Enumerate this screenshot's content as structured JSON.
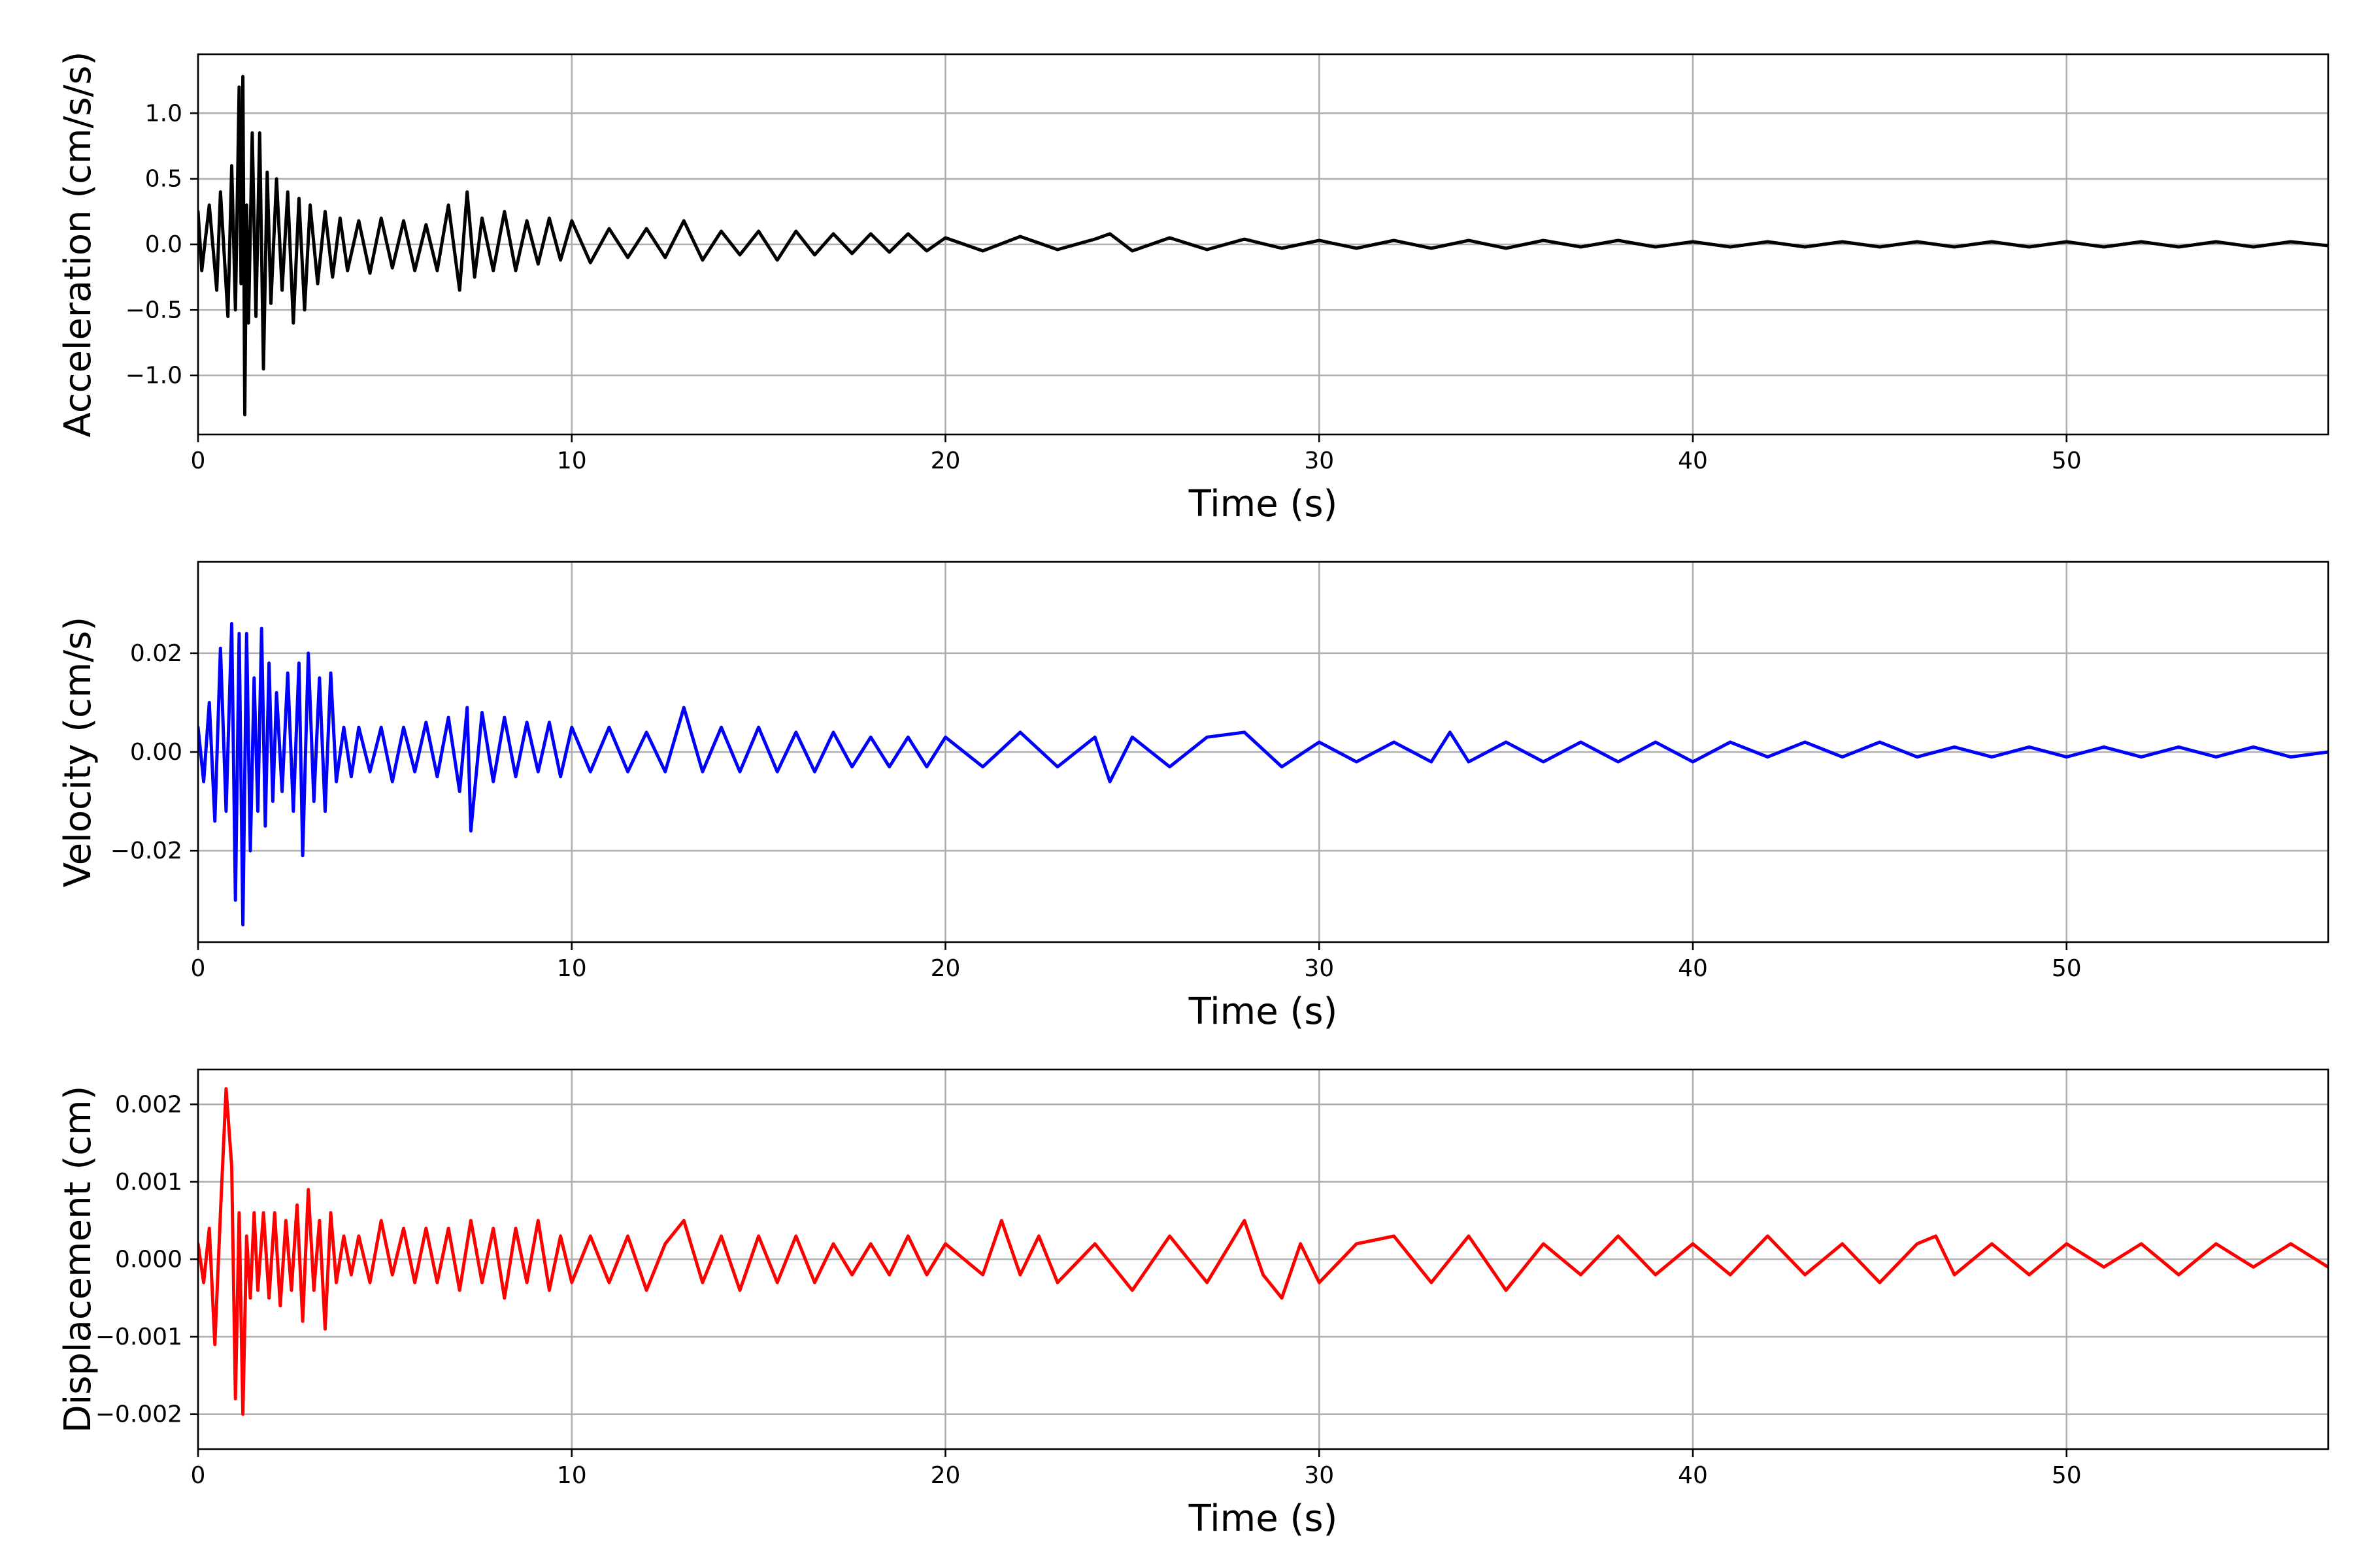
{
  "chart_data": [
    {
      "type": "line",
      "title": "",
      "xlabel": "Time (s)",
      "ylabel": "Acceleration (cm/s/s)",
      "xlim": [
        0,
        57
      ],
      "ylim": [
        -1.45,
        1.45
      ],
      "xticks": [
        0,
        10,
        20,
        30,
        40,
        50
      ],
      "xtick_labels": [
        "0",
        "10",
        "20",
        "30",
        "40",
        "50"
      ],
      "yticks": [
        -1.0,
        -0.5,
        0.0,
        0.5,
        1.0
      ],
      "ytick_labels": [
        "−1.0",
        "−0.5",
        "0.0",
        "0.5",
        "1.0"
      ],
      "grid": true,
      "legend": "none",
      "color": "#000000",
      "series": [
        {
          "x": [
            0,
            0.1,
            0.3,
            0.5,
            0.6,
            0.8,
            0.9,
            1.0,
            1.1,
            1.15,
            1.2,
            1.25,
            1.3,
            1.35,
            1.45,
            1.55,
            1.65,
            1.75,
            1.85,
            1.95,
            2.1,
            2.25,
            2.4,
            2.55,
            2.7,
            2.85,
            3.0,
            3.2,
            3.4,
            3.6,
            3.8,
            4.0,
            4.3,
            4.6,
            4.9,
            5.2,
            5.5,
            5.8,
            6.1,
            6.4,
            6.7,
            7.0,
            7.2,
            7.4,
            7.6,
            7.9,
            8.2,
            8.5,
            8.8,
            9.1,
            9.4,
            9.7,
            10.0,
            10.5,
            11.0,
            11.5,
            12.0,
            12.5,
            13.0,
            13.5,
            14.0,
            14.5,
            15.0,
            15.5,
            16.0,
            16.5,
            17.0,
            17.5,
            18.0,
            18.5,
            19.0,
            19.5,
            20.0,
            21.0,
            22.0,
            23.0,
            24.0,
            24.4,
            25.0,
            26.0,
            27.0,
            28.0,
            29.0,
            30.0,
            31.0,
            32.0,
            33.0,
            34.0,
            35.0,
            36.0,
            37.0,
            38.0,
            39.0,
            40.0,
            41.0,
            42.0,
            43.0,
            44.0,
            45.0,
            46.0,
            47.0,
            48.0,
            49.0,
            50.0,
            51.0,
            52.0,
            53.0,
            54.0,
            55.0,
            56.0,
            57.0
          ],
          "y": [
            0.25,
            -0.2,
            0.3,
            -0.35,
            0.4,
            -0.55,
            0.6,
            -0.5,
            1.2,
            -0.3,
            1.28,
            -1.3,
            0.3,
            -0.6,
            0.85,
            -0.55,
            0.85,
            -0.95,
            0.55,
            -0.45,
            0.5,
            -0.35,
            0.4,
            -0.6,
            0.35,
            -0.5,
            0.3,
            -0.3,
            0.25,
            -0.25,
            0.2,
            -0.2,
            0.18,
            -0.22,
            0.2,
            -0.18,
            0.18,
            -0.2,
            0.15,
            -0.2,
            0.3,
            -0.35,
            0.4,
            -0.25,
            0.2,
            -0.2,
            0.25,
            -0.2,
            0.18,
            -0.15,
            0.2,
            -0.12,
            0.18,
            -0.14,
            0.12,
            -0.1,
            0.12,
            -0.1,
            0.18,
            -0.12,
            0.1,
            -0.08,
            0.1,
            -0.12,
            0.1,
            -0.08,
            0.08,
            -0.07,
            0.08,
            -0.06,
            0.08,
            -0.05,
            0.05,
            -0.05,
            0.06,
            -0.04,
            0.04,
            0.08,
            -0.05,
            0.05,
            -0.04,
            0.04,
            -0.03,
            0.03,
            -0.03,
            0.03,
            -0.03,
            0.03,
            -0.03,
            0.03,
            -0.02,
            0.03,
            -0.02,
            0.02,
            -0.02,
            0.02,
            -0.02,
            0.02,
            -0.02,
            0.02,
            -0.02,
            0.02,
            -0.02,
            0.02,
            -0.02,
            0.02,
            -0.02,
            0.02,
            -0.02,
            0.02,
            -0.01
          ]
        }
      ]
    },
    {
      "type": "line",
      "title": "",
      "xlabel": "Time (s)",
      "ylabel": "Velocity (cm/s)",
      "xlim": [
        0,
        57
      ],
      "ylim": [
        -0.0385,
        0.0385
      ],
      "xticks": [
        0,
        10,
        20,
        30,
        40,
        50
      ],
      "xtick_labels": [
        "0",
        "10",
        "20",
        "30",
        "40",
        "50"
      ],
      "yticks": [
        -0.02,
        0.0,
        0.02
      ],
      "ytick_labels": [
        "−0.02",
        "0.00",
        "0.02"
      ],
      "grid": true,
      "legend": "none",
      "color": "#0000ff",
      "series": [
        {
          "x": [
            0,
            0.15,
            0.3,
            0.45,
            0.6,
            0.75,
            0.9,
            1.0,
            1.1,
            1.2,
            1.3,
            1.4,
            1.5,
            1.6,
            1.7,
            1.8,
            1.9,
            2.0,
            2.1,
            2.25,
            2.4,
            2.55,
            2.7,
            2.8,
            2.95,
            3.1,
            3.25,
            3.4,
            3.55,
            3.7,
            3.9,
            4.1,
            4.3,
            4.6,
            4.9,
            5.2,
            5.5,
            5.8,
            6.1,
            6.4,
            6.7,
            7.0,
            7.2,
            7.3,
            7.6,
            7.9,
            8.2,
            8.5,
            8.8,
            9.1,
            9.4,
            9.7,
            10.0,
            10.5,
            11.0,
            11.5,
            12.0,
            12.5,
            13.0,
            13.5,
            14.0,
            14.5,
            15.0,
            15.5,
            16.0,
            16.5,
            17.0,
            17.5,
            18.0,
            18.5,
            19.0,
            19.5,
            20.0,
            21.0,
            22.0,
            23.0,
            24.0,
            24.4,
            25.0,
            26.0,
            27.0,
            28.0,
            29.0,
            30.0,
            31.0,
            32.0,
            33.0,
            33.5,
            34.0,
            35.0,
            36.0,
            37.0,
            38.0,
            39.0,
            40.0,
            41.0,
            42.0,
            43.0,
            44.0,
            45.0,
            46.0,
            47.0,
            48.0,
            49.0,
            50.0,
            51.0,
            52.0,
            53.0,
            54.0,
            55.0,
            56.0,
            57.0
          ],
          "y": [
            0.005,
            -0.006,
            0.01,
            -0.014,
            0.021,
            -0.012,
            0.026,
            -0.03,
            0.024,
            -0.035,
            0.024,
            -0.02,
            0.015,
            -0.012,
            0.025,
            -0.015,
            0.018,
            -0.01,
            0.012,
            -0.008,
            0.016,
            -0.012,
            0.018,
            -0.021,
            0.02,
            -0.01,
            0.015,
            -0.012,
            0.016,
            -0.006,
            0.005,
            -0.005,
            0.005,
            -0.004,
            0.005,
            -0.006,
            0.005,
            -0.004,
            0.006,
            -0.005,
            0.007,
            -0.008,
            0.009,
            -0.016,
            0.008,
            -0.006,
            0.007,
            -0.005,
            0.006,
            -0.004,
            0.006,
            -0.005,
            0.005,
            -0.004,
            0.005,
            -0.004,
            0.004,
            -0.004,
            0.009,
            -0.004,
            0.005,
            -0.004,
            0.005,
            -0.004,
            0.004,
            -0.004,
            0.004,
            -0.003,
            0.003,
            -0.003,
            0.003,
            -0.003,
            0.003,
            -0.003,
            0.004,
            -0.003,
            0.003,
            -0.006,
            0.003,
            -0.003,
            0.003,
            0.004,
            -0.003,
            0.002,
            -0.002,
            0.002,
            -0.002,
            0.004,
            -0.002,
            0.002,
            -0.002,
            0.002,
            -0.002,
            0.002,
            -0.002,
            0.002,
            -0.001,
            0.002,
            -0.001,
            0.002,
            -0.001,
            0.001,
            -0.001,
            0.001,
            -0.001,
            0.001,
            -0.001,
            0.001,
            -0.001,
            0.001,
            -0.001,
            0.0
          ]
        }
      ]
    },
    {
      "type": "line",
      "title": "",
      "xlabel": "Time (s)",
      "ylabel": "Displacement (cm)",
      "xlim": [
        0,
        57
      ],
      "ylim": [
        -0.00245,
        0.00245
      ],
      "xticks": [
        0,
        10,
        20,
        30,
        40,
        50
      ],
      "xtick_labels": [
        "0",
        "10",
        "20",
        "30",
        "40",
        "50"
      ],
      "yticks": [
        -0.002,
        -0.001,
        0.0,
        0.001,
        0.002
      ],
      "ytick_labels": [
        "−0.002",
        "−0.001",
        "0.000",
        "0.001",
        "0.002"
      ],
      "grid": true,
      "legend": "none",
      "color": "#ff0000",
      "series": [
        {
          "x": [
            0,
            0.15,
            0.3,
            0.45,
            0.6,
            0.75,
            0.9,
            1.0,
            1.1,
            1.2,
            1.3,
            1.4,
            1.5,
            1.6,
            1.75,
            1.9,
            2.05,
            2.2,
            2.35,
            2.5,
            2.65,
            2.8,
            2.95,
            3.1,
            3.25,
            3.4,
            3.55,
            3.7,
            3.9,
            4.1,
            4.3,
            4.6,
            4.9,
            5.2,
            5.5,
            5.8,
            6.1,
            6.4,
            6.7,
            7.0,
            7.3,
            7.6,
            7.9,
            8.2,
            8.5,
            8.8,
            9.1,
            9.4,
            9.7,
            10.0,
            10.5,
            11.0,
            11.5,
            12.0,
            12.5,
            13.0,
            13.5,
            14.0,
            14.5,
            15.0,
            15.5,
            16.0,
            16.5,
            17.0,
            17.5,
            18.0,
            18.5,
            19.0,
            19.5,
            20.0,
            21.0,
            21.5,
            22.0,
            22.5,
            23.0,
            24.0,
            25.0,
            26.0,
            27.0,
            28.0,
            28.5,
            29.0,
            29.5,
            30.0,
            31.0,
            32.0,
            33.0,
            34.0,
            35.0,
            36.0,
            37.0,
            38.0,
            39.0,
            40.0,
            41.0,
            42.0,
            43.0,
            44.0,
            45.0,
            46.0,
            46.5,
            47.0,
            48.0,
            49.0,
            50.0,
            51.0,
            52.0,
            53.0,
            54.0,
            55.0,
            56.0,
            57.0
          ],
          "y": [
            0.0002,
            -0.0003,
            0.0004,
            -0.0011,
            0.0006,
            0.0022,
            0.0012,
            -0.0018,
            0.0006,
            -0.002,
            0.0003,
            -0.0005,
            0.0006,
            -0.0004,
            0.0006,
            -0.0005,
            0.0006,
            -0.0006,
            0.0005,
            -0.0004,
            0.0007,
            -0.0008,
            0.0009,
            -0.0004,
            0.0005,
            -0.0009,
            0.0006,
            -0.0003,
            0.0003,
            -0.0002,
            0.0003,
            -0.0003,
            0.0005,
            -0.0002,
            0.0004,
            -0.0003,
            0.0004,
            -0.0003,
            0.0004,
            -0.0004,
            0.0005,
            -0.0003,
            0.0004,
            -0.0005,
            0.0004,
            -0.0003,
            0.0005,
            -0.0004,
            0.0003,
            -0.0003,
            0.0003,
            -0.0003,
            0.0003,
            -0.0004,
            0.0002,
            0.0005,
            -0.0003,
            0.0003,
            -0.0004,
            0.0003,
            -0.0003,
            0.0003,
            -0.0003,
            0.0002,
            -0.0002,
            0.0002,
            -0.0002,
            0.0003,
            -0.0002,
            0.0002,
            -0.0002,
            0.0005,
            -0.0002,
            0.0003,
            -0.0003,
            0.0002,
            -0.0004,
            0.0003,
            -0.0003,
            0.0005,
            -0.0002,
            -0.0005,
            0.0002,
            -0.0003,
            0.0002,
            0.0003,
            -0.0003,
            0.0003,
            -0.0004,
            0.0002,
            -0.0002,
            0.0003,
            -0.0002,
            0.0002,
            -0.0002,
            0.0003,
            -0.0002,
            0.0002,
            -0.0003,
            0.0002,
            0.0003,
            -0.0002,
            0.0002,
            -0.0002,
            0.0002,
            -0.0001,
            0.0002,
            -0.0002,
            0.0002,
            -0.0001,
            0.0002,
            -0.0001
          ]
        }
      ]
    }
  ]
}
